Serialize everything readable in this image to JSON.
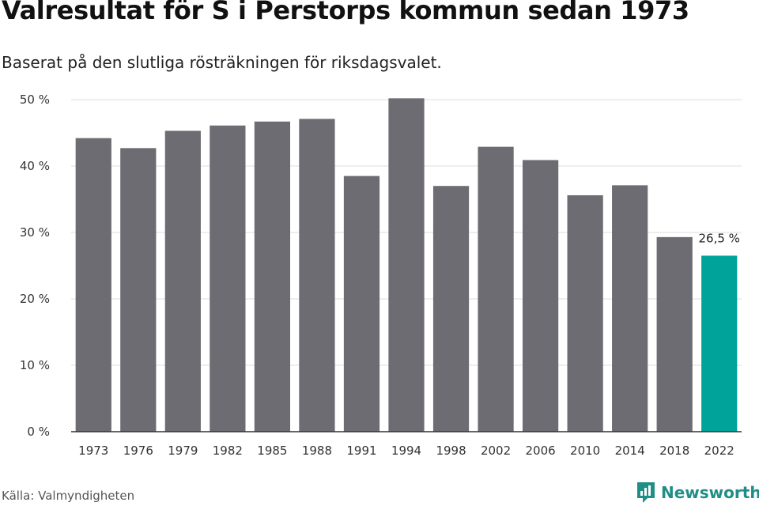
{
  "title": "Valresultat för S i Perstorps kommun sedan 1973",
  "subtitle": "Baserat på den slutliga rösträkningen för riksdagsvalet.",
  "source": "Källa: Valmyndigheten",
  "brand": {
    "name": "Newsworthy",
    "color": "#1f8e86"
  },
  "colors": {
    "bar": "#6d6c72",
    "highlight": "#00a39a",
    "grid": "#dddddd",
    "axis": "#333333"
  },
  "chart_data": {
    "type": "bar",
    "title": "Valresultat för S i Perstorps kommun sedan 1973",
    "xlabel": "",
    "ylabel": "",
    "categories": [
      "1973",
      "1976",
      "1979",
      "1982",
      "1985",
      "1988",
      "1991",
      "1994",
      "1998",
      "2002",
      "2006",
      "2010",
      "2014",
      "2018",
      "2022"
    ],
    "values": [
      44.2,
      42.7,
      45.3,
      46.1,
      46.7,
      47.1,
      38.5,
      50.2,
      37.0,
      42.9,
      40.9,
      35.6,
      37.1,
      29.3,
      26.5
    ],
    "highlight_index": 14,
    "highlight_label": "26,5 %",
    "ylim": [
      0,
      50
    ],
    "yticks": [
      0,
      10,
      20,
      30,
      40,
      50
    ],
    "ytick_labels": [
      "0 %",
      "10 %",
      "20 %",
      "30 %",
      "40 %",
      "50 %"
    ],
    "grid": true,
    "legend": "none"
  }
}
